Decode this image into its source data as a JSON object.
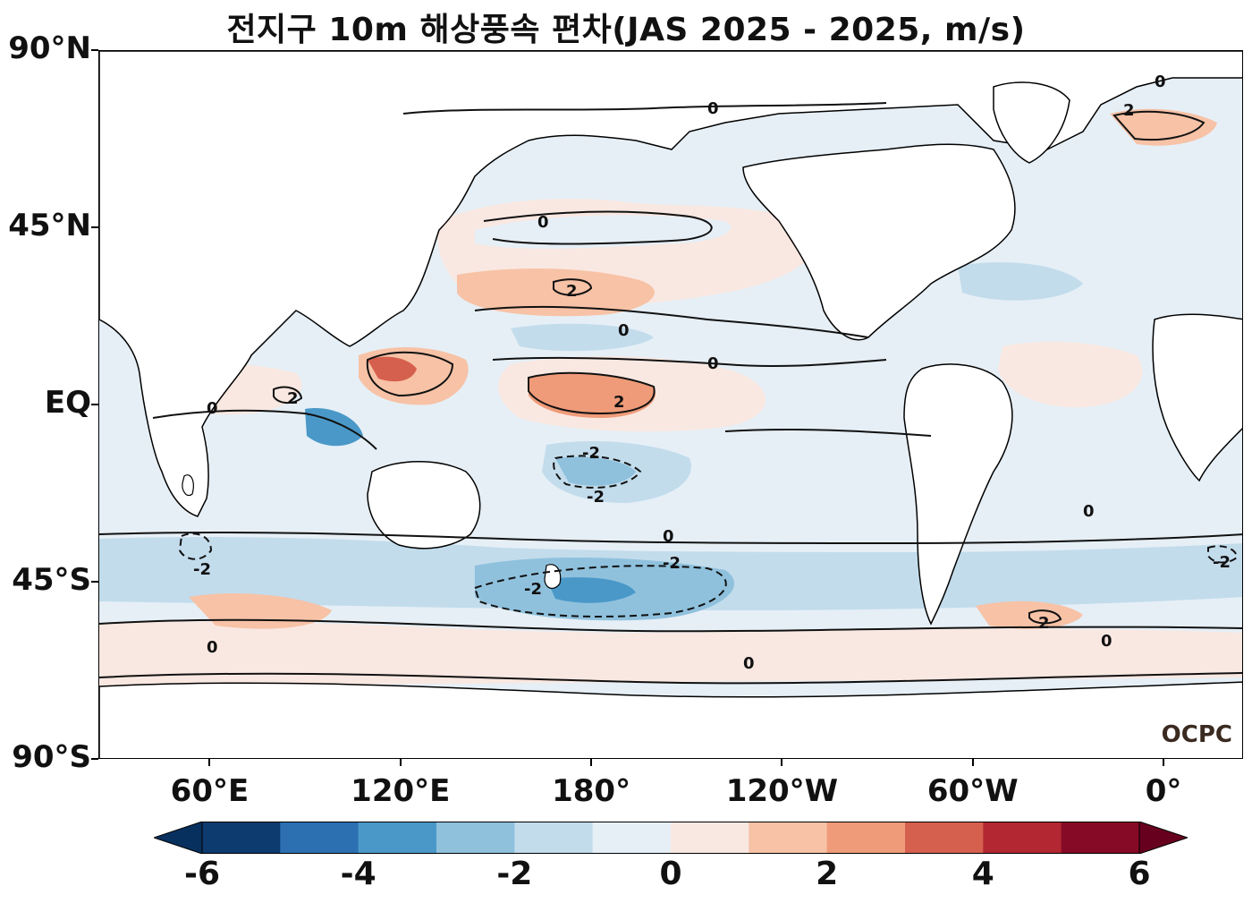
{
  "title": "전지구 10m 해상풍속 편차(JAS 2025 - 2025, m/s)",
  "y_axis": {
    "labels": [
      {
        "text": "90°N",
        "lat": 90
      },
      {
        "text": "45°N",
        "lat": 45
      },
      {
        "text": "EQ",
        "lat": 0
      },
      {
        "text": "45°S",
        "lat": -45
      },
      {
        "text": "90°S",
        "lat": -90
      }
    ]
  },
  "x_axis": {
    "labels": [
      {
        "text": "60°E",
        "lon": 60
      },
      {
        "text": "120°E",
        "lon": 120
      },
      {
        "text": "180°",
        "lon": 180
      },
      {
        "text": "120°W",
        "lon": 240
      },
      {
        "text": "60°W",
        "lon": 300
      },
      {
        "text": "0°",
        "lon": 360
      }
    ]
  },
  "map_extent": {
    "lon_min": 25,
    "lon_max": 385,
    "lat_min": -90,
    "lat_max": 90
  },
  "colorbar": {
    "levels": [
      -6,
      -5,
      -4,
      -3,
      -2,
      -1,
      0,
      1,
      2,
      3,
      4,
      5,
      6
    ],
    "tick_labels": [
      "-6",
      "-4",
      "-2",
      "0",
      "2",
      "4",
      "6"
    ],
    "colors": [
      "#0d3a6f",
      "#2c70b2",
      "#4a98c8",
      "#8fc1dd",
      "#c2dcec",
      "#e6eff6",
      "#f9e8e1",
      "#f7c2a6",
      "#ef9b79",
      "#d6604e",
      "#b22731",
      "#860a25"
    ],
    "under_color": "#08305e",
    "over_color": "#67001f"
  },
  "credit": "OCPC",
  "contour_label": [
    "0",
    "2",
    "-2"
  ],
  "colors": {
    "land": "#ffffff",
    "coastline": "#000000",
    "contour": "#111111"
  }
}
